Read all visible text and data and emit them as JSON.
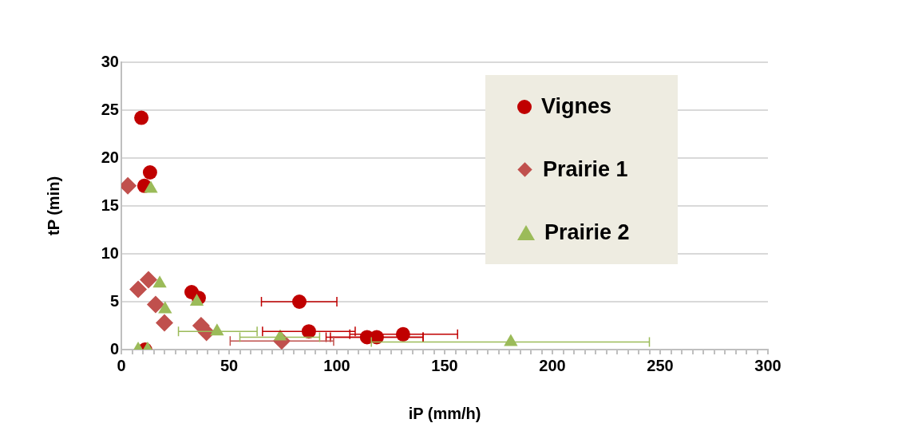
{
  "chart_data": {
    "type": "scatter",
    "xlabel": "iP (mm/h)",
    "ylabel": "tP (min)",
    "xlim": [
      0,
      300
    ],
    "ylim": [
      0,
      30
    ],
    "xticks": [
      0,
      {
        "value": 5,
        "label": null
      },
      {
        "value": 10,
        "label": null
      },
      {
        "value": 15,
        "label": null
      },
      {
        "value": 20,
        "label": null
      },
      {
        "value": 25,
        "label": null
      },
      {
        "value": 30,
        "label": null
      },
      {
        "value": 35,
        "label": null
      },
      {
        "value": 40,
        "label": null
      },
      {
        "value": 45,
        "label": null
      },
      50,
      {
        "value": 55,
        "label": null
      },
      {
        "value": 60,
        "label": null
      },
      {
        "value": 65,
        "label": null
      },
      {
        "value": 70,
        "label": null
      },
      {
        "value": 75,
        "label": null
      },
      {
        "value": 80,
        "label": null
      },
      {
        "value": 85,
        "label": null
      },
      {
        "value": 90,
        "label": null
      },
      {
        "value": 95,
        "label": null
      },
      100,
      {
        "value": 105,
        "label": null
      },
      {
        "value": 110,
        "label": null
      },
      {
        "value": 115,
        "label": null
      },
      {
        "value": 120,
        "label": null
      },
      {
        "value": 125,
        "label": null
      },
      {
        "value": 130,
        "label": null
      },
      {
        "value": 135,
        "label": null
      },
      {
        "value": 140,
        "label": null
      },
      {
        "value": 145,
        "label": null
      },
      150,
      {
        "value": 155,
        "label": null
      },
      {
        "value": 160,
        "label": null
      },
      {
        "value": 165,
        "label": null
      },
      {
        "value": 170,
        "label": null
      },
      {
        "value": 175,
        "label": null
      },
      {
        "value": 180,
        "label": null
      },
      {
        "value": 185,
        "label": null
      },
      {
        "value": 190,
        "label": null
      },
      {
        "value": 195,
        "label": null
      },
      200,
      {
        "value": 205,
        "label": null
      },
      {
        "value": 210,
        "label": null
      },
      {
        "value": 215,
        "label": null
      },
      {
        "value": 220,
        "label": null
      },
      {
        "value": 225,
        "label": null
      },
      {
        "value": 230,
        "label": null
      },
      {
        "value": 235,
        "label": null
      },
      {
        "value": 240,
        "label": null
      },
      {
        "value": 245,
        "label": null
      },
      250,
      {
        "value": 255,
        "label": null
      },
      {
        "value": 260,
        "label": null
      },
      {
        "value": 265,
        "label": null
      },
      {
        "value": 270,
        "label": null
      },
      {
        "value": 275,
        "label": null
      },
      {
        "value": 280,
        "label": null
      },
      {
        "value": 285,
        "label": null
      },
      {
        "value": 290,
        "label": null
      },
      {
        "value": 295,
        "label": null
      },
      300
    ],
    "yticks": [
      0,
      5,
      10,
      15,
      20,
      25,
      30
    ],
    "grid": "y",
    "legend": "top right",
    "series": [
      {
        "name": "Vignes",
        "color": "#c00000",
        "marker": "circle",
        "x": [
          9.3,
          13.3,
          10.7,
          32.6,
          35.9,
          82.6,
          87,
          114,
          118.5,
          130.7,
          11
        ],
        "values": [
          24.2,
          18.5,
          17.1,
          6,
          5.4,
          5,
          1.9,
          1.3,
          1.3,
          1.6,
          0
        ],
        "xerrors": [
          null,
          null,
          null,
          null,
          null,
          [
            65,
            100
          ],
          [
            65.5,
            108.5
          ],
          [
            95,
            140
          ],
          [
            97,
            140
          ],
          [
            106,
            156
          ],
          null
        ]
      },
      {
        "name": "Prairie 1",
        "color": "#c0504d",
        "marker": "diamond",
        "x": [
          3,
          7.8,
          12.6,
          15.9,
          20,
          37,
          39.5,
          74.4
        ],
        "values": [
          17.1,
          6.3,
          7.3,
          4.7,
          2.8,
          2.5,
          1.8,
          0.9
        ],
        "xerrors": [
          null,
          null,
          null,
          null,
          null,
          null,
          null,
          [
            50.5,
            98.5
          ]
        ]
      },
      {
        "name": "Prairie 2",
        "color": "#9bbb59",
        "marker": "triangle",
        "x": [
          13.7,
          17.8,
          20.3,
          35,
          44.4,
          73.7,
          180.7,
          7.8,
          12.2
        ],
        "values": [
          16.8,
          6.9,
          4.2,
          5,
          1.9,
          1.3,
          0.8,
          0,
          0
        ],
        "xerrors": [
          null,
          null,
          null,
          null,
          [
            26.5,
            63
          ],
          [
            55,
            92
          ],
          [
            116,
            245
          ],
          null,
          null
        ]
      }
    ]
  }
}
